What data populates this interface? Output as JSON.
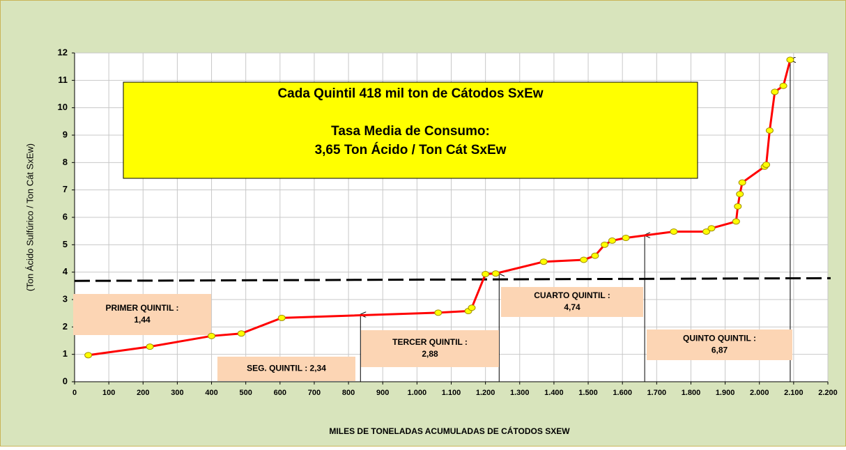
{
  "chart_data": {
    "type": "line",
    "xlabel": "MILES DE TONELADAS ACUMULADAS DE CÁTODOS SXEW",
    "ylabel": "(Ton Ácido Sulfúrico / Ton Cát SxEw)",
    "xlim": [
      0,
      2200
    ],
    "ylim": [
      0,
      12
    ],
    "xticks": [
      0,
      100,
      200,
      300,
      400,
      500,
      600,
      700,
      800,
      900,
      {
        "value": 1000,
        "label": "1.000"
      },
      {
        "value": 1100,
        "label": "1.100"
      },
      {
        "value": 1200,
        "label": "1.200"
      },
      {
        "value": 1300,
        "label": "1.300"
      },
      {
        "value": 1400,
        "label": "1.400"
      },
      {
        "value": 1500,
        "label": "1.500"
      },
      {
        "value": 1600,
        "label": "1.600"
      },
      {
        "value": 1700,
        "label": "1.700"
      },
      {
        "value": 1800,
        "label": "1.800"
      },
      {
        "value": 1900,
        "label": "1.900"
      },
      {
        "value": 2000,
        "label": "2.000"
      },
      {
        "value": 2100,
        "label": "2.100"
      },
      {
        "value": 2200,
        "label": "2.200"
      }
    ],
    "yticks": [
      0,
      1,
      2,
      3,
      4,
      5,
      6,
      7,
      8,
      9,
      10,
      11,
      12
    ],
    "grid": true,
    "series": [
      {
        "color": "#ff0000",
        "marker_color": "#ffff00",
        "x": [
          40,
          220,
          400,
          487,
          605,
          1062,
          1150,
          1160,
          1200,
          1230,
          1370,
          1487,
          1520,
          1548,
          1570,
          1610,
          1750,
          1845,
          1860,
          1932,
          1937,
          1943,
          1950,
          2015,
          2020,
          2030,
          2045,
          2070,
          2090
        ],
        "values": [
          0.97,
          1.28,
          1.67,
          1.76,
          2.33,
          2.52,
          2.58,
          2.7,
          3.93,
          3.95,
          4.38,
          4.45,
          4.6,
          5.0,
          5.15,
          5.25,
          5.48,
          5.48,
          5.6,
          5.85,
          6.4,
          6.85,
          7.27,
          7.85,
          7.92,
          9.17,
          10.58,
          10.8,
          11.75
        ]
      }
    ],
    "reference_line": {
      "x": [
        0,
        2200
      ],
      "y": [
        3.68,
        3.78
      ],
      "color": "#000000"
    },
    "quintile_markers": {
      "x": [
        835,
        1240,
        1665,
        2090
      ],
      "y": [
        2.45,
        3.95,
        5.35,
        11.75
      ]
    },
    "title_box": [
      "Cada Quintil 418 mil ton de Cátodos SxEw",
      "Tasa Media de Consumo:",
      "3,65 Ton Ácido / Ton Cát SxEw"
    ],
    "quintile_labels": [
      [
        "PRIMER QUINTIL :",
        "1,44"
      ],
      [
        "SEG. QUINTIL : 2,34"
      ],
      [
        "TERCER QUINTIL :",
        "2,88"
      ],
      [
        "CUARTO QUINTIL :",
        "4,74"
      ],
      [
        "QUINTO QUINTIL :",
        "6,87"
      ]
    ]
  }
}
